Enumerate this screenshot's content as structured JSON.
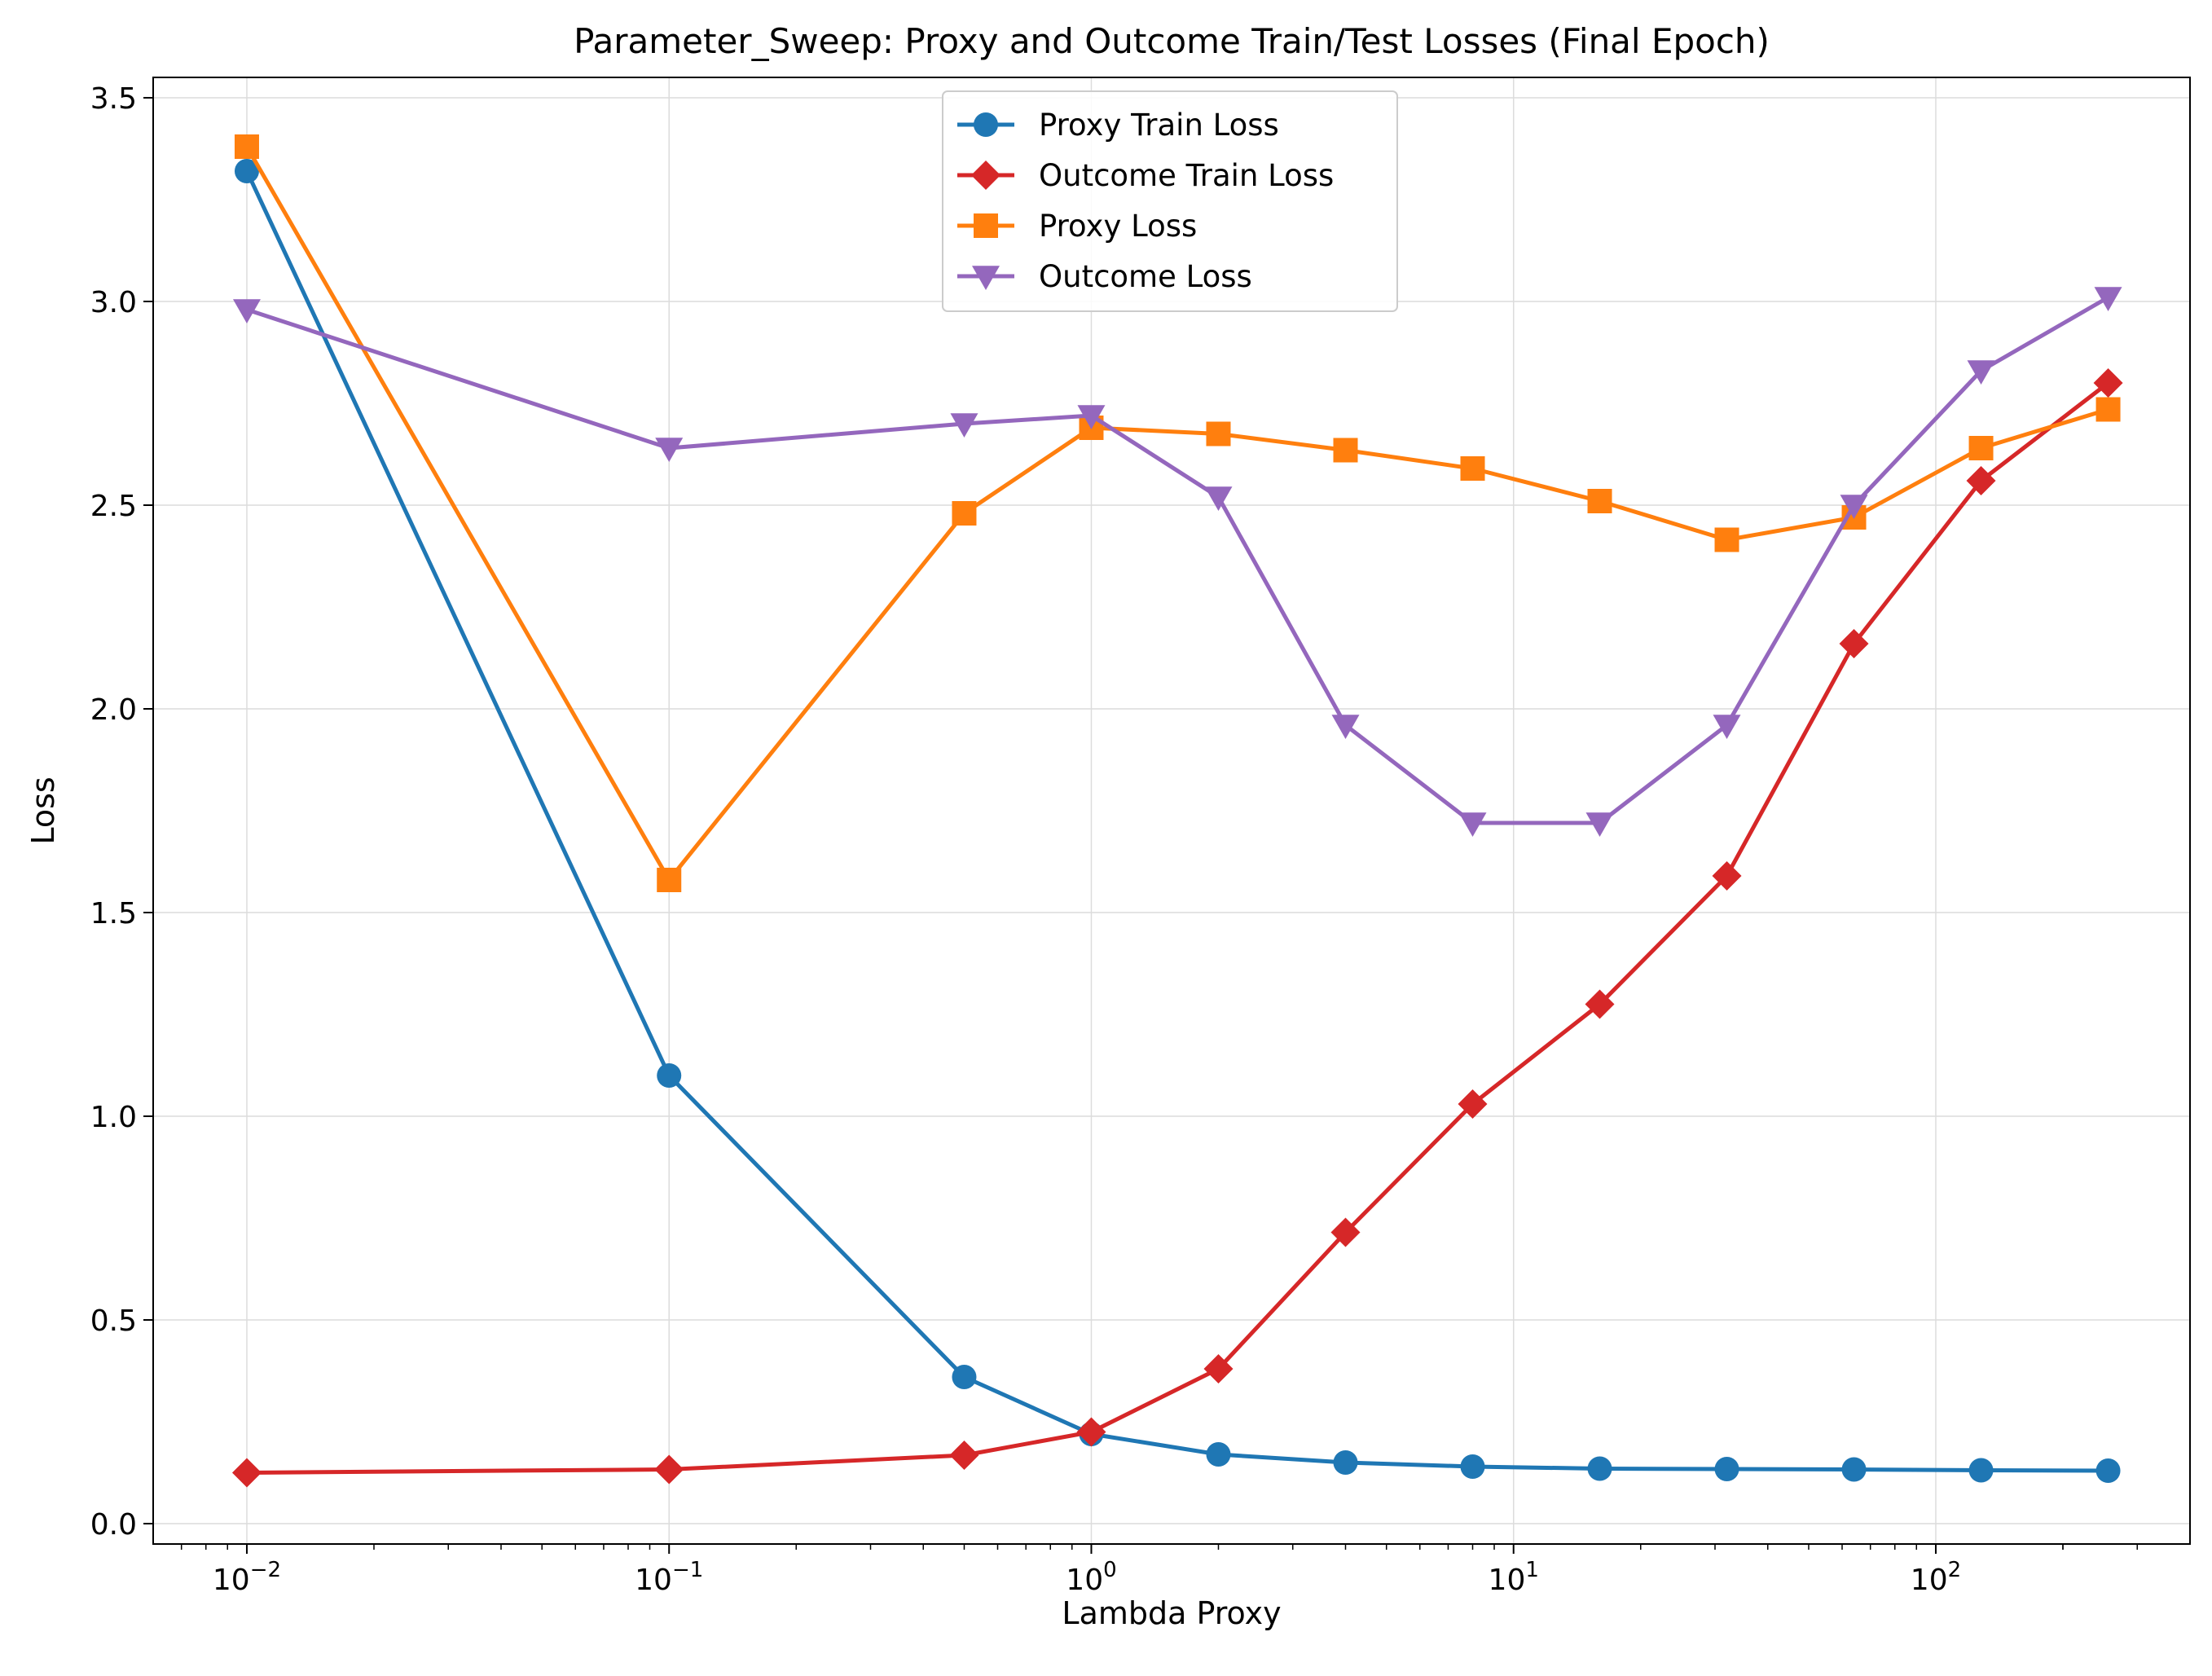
{
  "chart_data": {
    "type": "line",
    "title": "Parameter_Sweep: Proxy and Outcome Train/Test Losses (Final Epoch)",
    "xlabel": "Lambda Proxy",
    "ylabel": "Loss",
    "xscale": "log",
    "xlim": [
      0.006,
      400
    ],
    "ylim": [
      -0.05,
      3.55
    ],
    "grid": true,
    "legend_position": "top-center",
    "x": [
      0.01,
      0.1,
      0.5,
      1,
      2,
      4,
      8,
      16,
      32,
      64,
      128,
      256
    ],
    "x_ticks": [
      {
        "value": 0.01,
        "base": "10",
        "exp": "−2"
      },
      {
        "value": 0.1,
        "base": "10",
        "exp": "−1"
      },
      {
        "value": 1,
        "base": "10",
        "exp": "0"
      },
      {
        "value": 10,
        "base": "10",
        "exp": "1"
      },
      {
        "value": 100,
        "base": "10",
        "exp": "2"
      }
    ],
    "y_ticks": [
      {
        "value": 0.0,
        "label": "0.0"
      },
      {
        "value": 0.5,
        "label": "0.5"
      },
      {
        "value": 1.0,
        "label": "1.0"
      },
      {
        "value": 1.5,
        "label": "1.5"
      },
      {
        "value": 2.0,
        "label": "2.0"
      },
      {
        "value": 2.5,
        "label": "2.5"
      },
      {
        "value": 3.0,
        "label": "3.0"
      },
      {
        "value": 3.5,
        "label": "3.5"
      }
    ],
    "series": [
      {
        "name": "Proxy Train Loss",
        "color": "#1f77b4",
        "marker": "circle",
        "values": [
          3.32,
          1.1,
          0.36,
          0.22,
          0.17,
          0.15,
          0.14,
          0.135,
          0.134,
          0.133,
          0.131,
          0.13
        ]
      },
      {
        "name": "Outcome Train Loss",
        "color": "#d62728",
        "marker": "diamond",
        "values": [
          0.125,
          0.133,
          0.168,
          0.225,
          0.38,
          0.715,
          1.03,
          1.275,
          1.59,
          2.16,
          2.56,
          2.8
        ]
      },
      {
        "name": "Proxy Loss",
        "color": "#ff7f0e",
        "marker": "square",
        "values": [
          3.38,
          1.58,
          2.48,
          2.69,
          2.675,
          2.635,
          2.59,
          2.51,
          2.415,
          2.47,
          2.64,
          2.735
        ]
      },
      {
        "name": "Outcome Loss",
        "color": "#9467bd",
        "marker": "triangle-down",
        "values": [
          2.98,
          2.64,
          2.7,
          2.72,
          2.52,
          1.96,
          1.72,
          1.72,
          1.96,
          2.5,
          2.83,
          3.01
        ]
      }
    ]
  }
}
